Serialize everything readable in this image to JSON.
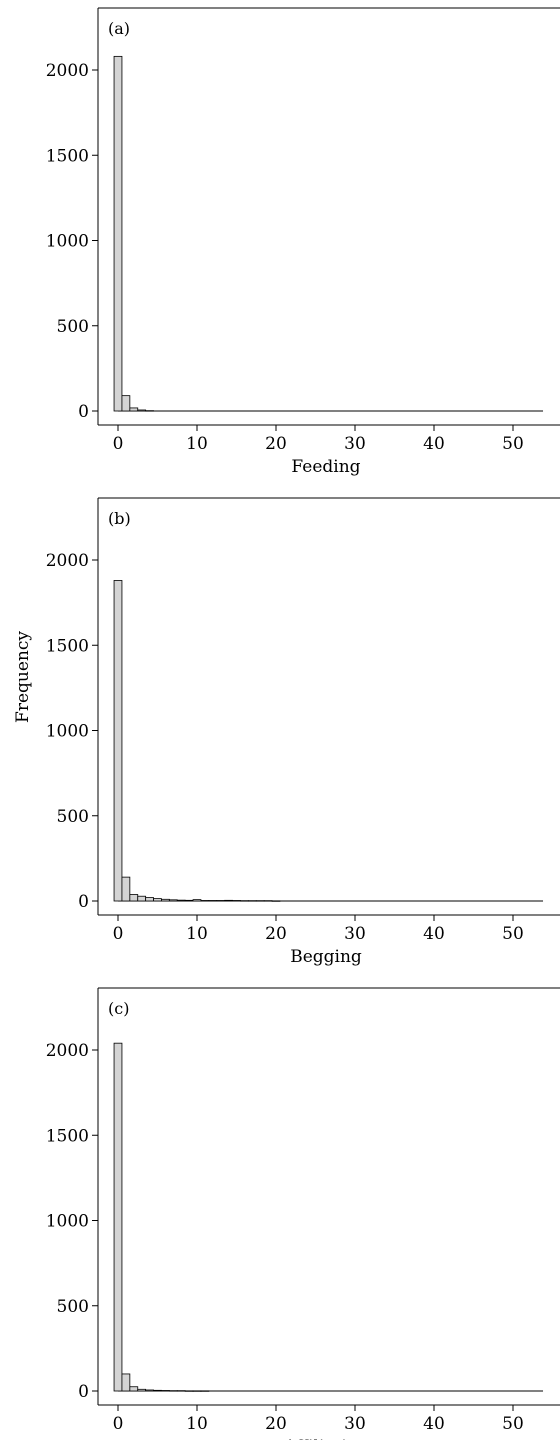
{
  "figure": {
    "ylabel": "Frequency"
  },
  "chart_data": [
    {
      "type": "bar",
      "panel_label": "(a)",
      "xlabel": "Feeding",
      "ylabel": "Frequency",
      "xlim": [
        -2,
        54
      ],
      "ylim": [
        -50,
        2350
      ],
      "xticks": [
        0,
        10,
        20,
        30,
        40,
        50
      ],
      "yticks": [
        0,
        500,
        1000,
        1500,
        2000
      ],
      "bin_width": 1,
      "bins": [
        0,
        1,
        2,
        3,
        4
      ],
      "values": [
        2080,
        90,
        18,
        6,
        2
      ],
      "bar_color": "#d4d4d4"
    },
    {
      "type": "bar",
      "panel_label": "(b)",
      "xlabel": "Begging",
      "ylabel": "Frequency",
      "xlim": [
        -2,
        54
      ],
      "ylim": [
        -50,
        2350
      ],
      "xticks": [
        0,
        10,
        20,
        30,
        40,
        50
      ],
      "yticks": [
        0,
        500,
        1000,
        1500,
        2000
      ],
      "bin_width": 1,
      "bins": [
        0,
        1,
        2,
        3,
        4,
        5,
        6,
        7,
        8,
        9,
        10,
        11,
        12,
        13,
        14,
        15,
        16,
        17,
        18,
        19,
        20
      ],
      "values": [
        1880,
        140,
        38,
        28,
        20,
        14,
        10,
        7,
        5,
        4,
        8,
        3,
        3,
        3,
        4,
        3,
        2,
        2,
        2,
        2,
        1
      ],
      "bar_color": "#d4d4d4"
    },
    {
      "type": "bar",
      "panel_label": "(c)",
      "xlabel": "Affiliation",
      "ylabel": "Frequency",
      "xlim": [
        -2,
        54
      ],
      "ylim": [
        -50,
        2350
      ],
      "xticks": [
        0,
        10,
        20,
        30,
        40,
        50
      ],
      "yticks": [
        0,
        500,
        1000,
        1500,
        2000
      ],
      "bin_width": 1,
      "bins": [
        0,
        1,
        2,
        3,
        4,
        5,
        6,
        7,
        8,
        9,
        10,
        11
      ],
      "values": [
        2040,
        100,
        25,
        10,
        6,
        4,
        3,
        2,
        2,
        1,
        1,
        1
      ],
      "bar_color": "#d4d4d4"
    }
  ]
}
